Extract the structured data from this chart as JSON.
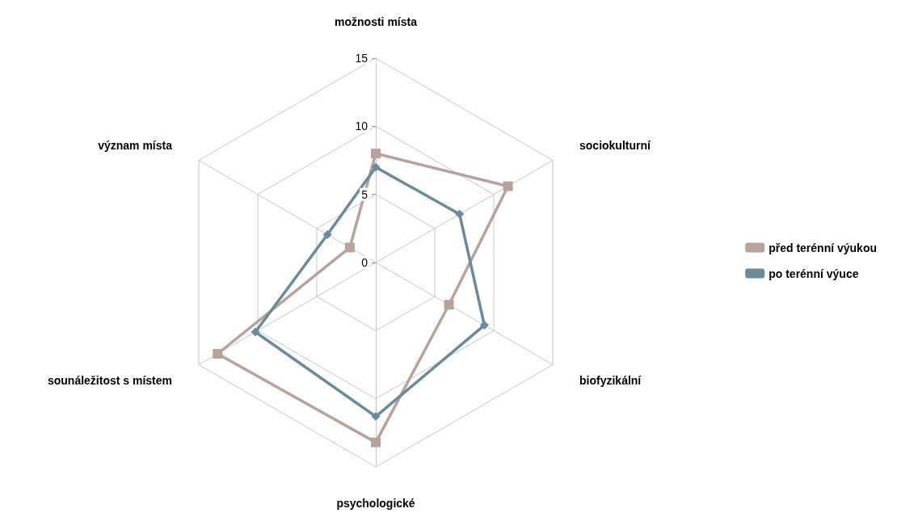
{
  "chart_data": {
    "type": "radar",
    "categories": [
      "možnosti místa",
      "sociokulturní",
      "biofyzikální",
      "psychologické",
      "sounáležitost s místem",
      "význam místa"
    ],
    "series": [
      {
        "name": "před terénní výukou",
        "color": "#b8a29c",
        "marker": "square",
        "values": [
          8.0,
          11.2,
          6.2,
          13.2,
          13.4,
          2.2
        ]
      },
      {
        "name": "po terénní výuce",
        "color": "#6b8a9a",
        "marker": "diamond",
        "values": [
          7.0,
          7.1,
          9.2,
          11.3,
          10.2,
          4.1
        ]
      }
    ],
    "ylim": [
      0,
      15
    ],
    "yticks": [
      0,
      5,
      10,
      15
    ],
    "grid": true,
    "legend": "right"
  }
}
